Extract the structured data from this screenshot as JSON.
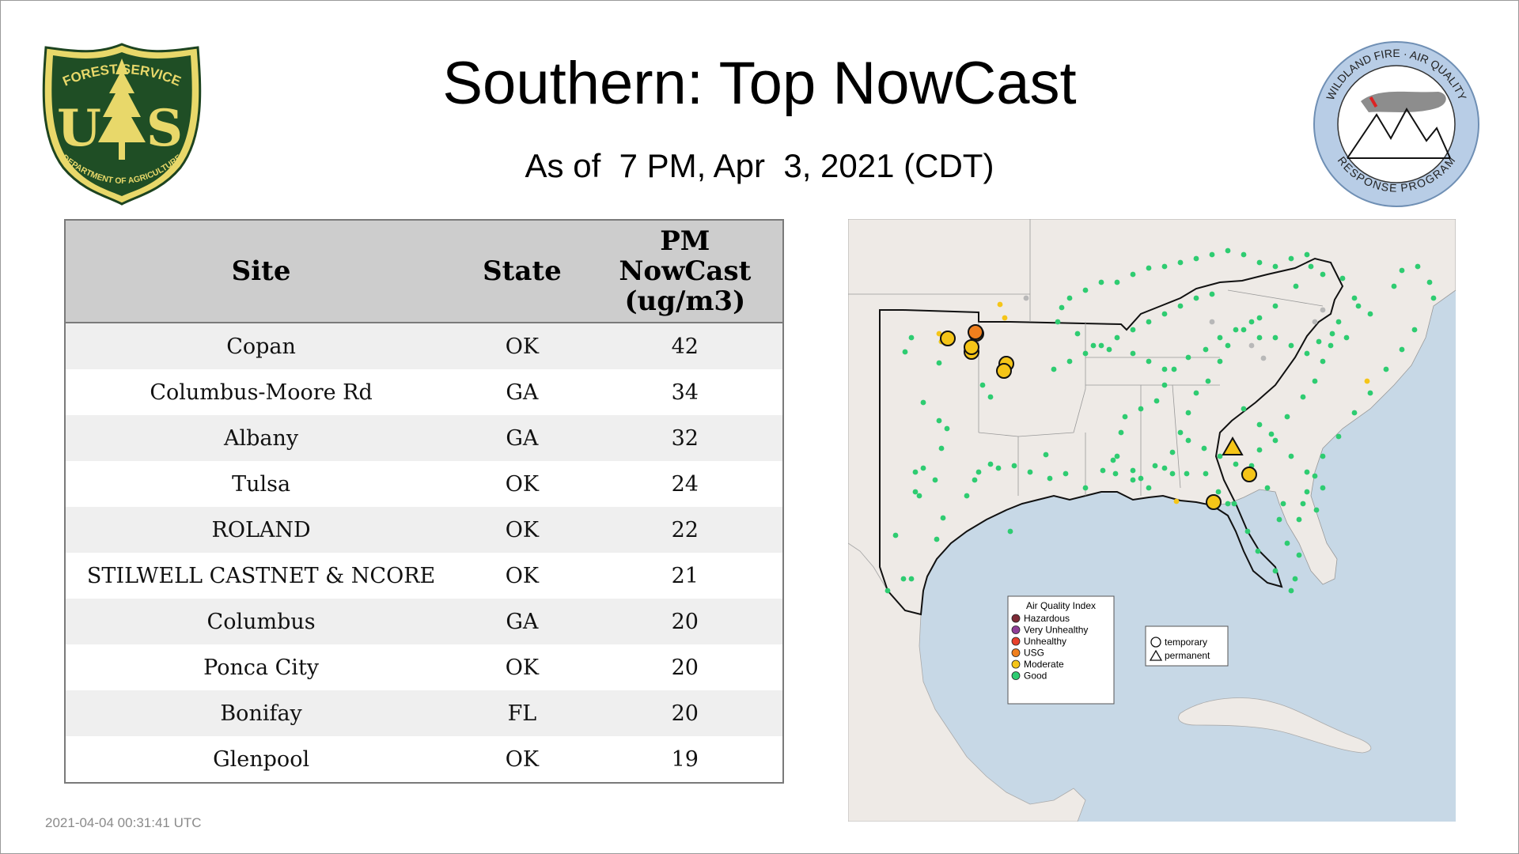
{
  "title": "Southern: Top NowCast",
  "subtitle": "As of  7 PM, Apr  3, 2021 (CDT)",
  "timestamp": "2021-04-04 00:31:41 UTC",
  "logos": {
    "usfs": {
      "top": "FOREST SERVICE",
      "letters": "U S",
      "bottom": "DEPARTMENT OF AGRICULTURE"
    },
    "wfaq": {
      "top": "WILDLAND FIRE · AIR QUALITY",
      "bottom": "RESPONSE PROGRAM"
    }
  },
  "table": {
    "headers": {
      "site": "Site",
      "state": "State",
      "pm_line1": "PM",
      "pm_line2": "NowCast",
      "pm_line3": "(ug/m3)"
    },
    "rows": [
      {
        "site": "Copan",
        "state": "OK",
        "value": "42"
      },
      {
        "site": "Columbus-Moore Rd",
        "state": "GA",
        "value": "34"
      },
      {
        "site": "Albany",
        "state": "GA",
        "value": "32"
      },
      {
        "site": "Tulsa",
        "state": "OK",
        "value": "24"
      },
      {
        "site": "ROLAND",
        "state": "OK",
        "value": "22"
      },
      {
        "site": "STILWELL CASTNET & NCORE",
        "state": "OK",
        "value": "21"
      },
      {
        "site": "Columbus",
        "state": "GA",
        "value": "20"
      },
      {
        "site": "Ponca City",
        "state": "OK",
        "value": "20"
      },
      {
        "site": "Bonifay",
        "state": "FL",
        "value": "20"
      },
      {
        "site": "Glenpool",
        "state": "OK",
        "value": "19"
      }
    ]
  },
  "map": {
    "legend": {
      "title": "Air Quality Index",
      "items": [
        {
          "label": "Hazardous",
          "color": "#7e2b36"
        },
        {
          "label": "Very Unhealthy",
          "color": "#8f3f97"
        },
        {
          "label": "Unhealthy",
          "color": "#e8412c"
        },
        {
          "label": "USG",
          "color": "#f07f1d"
        },
        {
          "label": "Moderate",
          "color": "#f5c518"
        },
        {
          "label": "Good",
          "color": "#2ecc71"
        }
      ]
    },
    "shape_legend": {
      "temporary": "temporary",
      "permanent": "permanent"
    }
  },
  "colors": {
    "header_bg": "#cdcdcd",
    "row_odd": "#efefef",
    "row_even": "#ffffff",
    "water": "#c7d8e6",
    "land": "#eeeae6"
  }
}
